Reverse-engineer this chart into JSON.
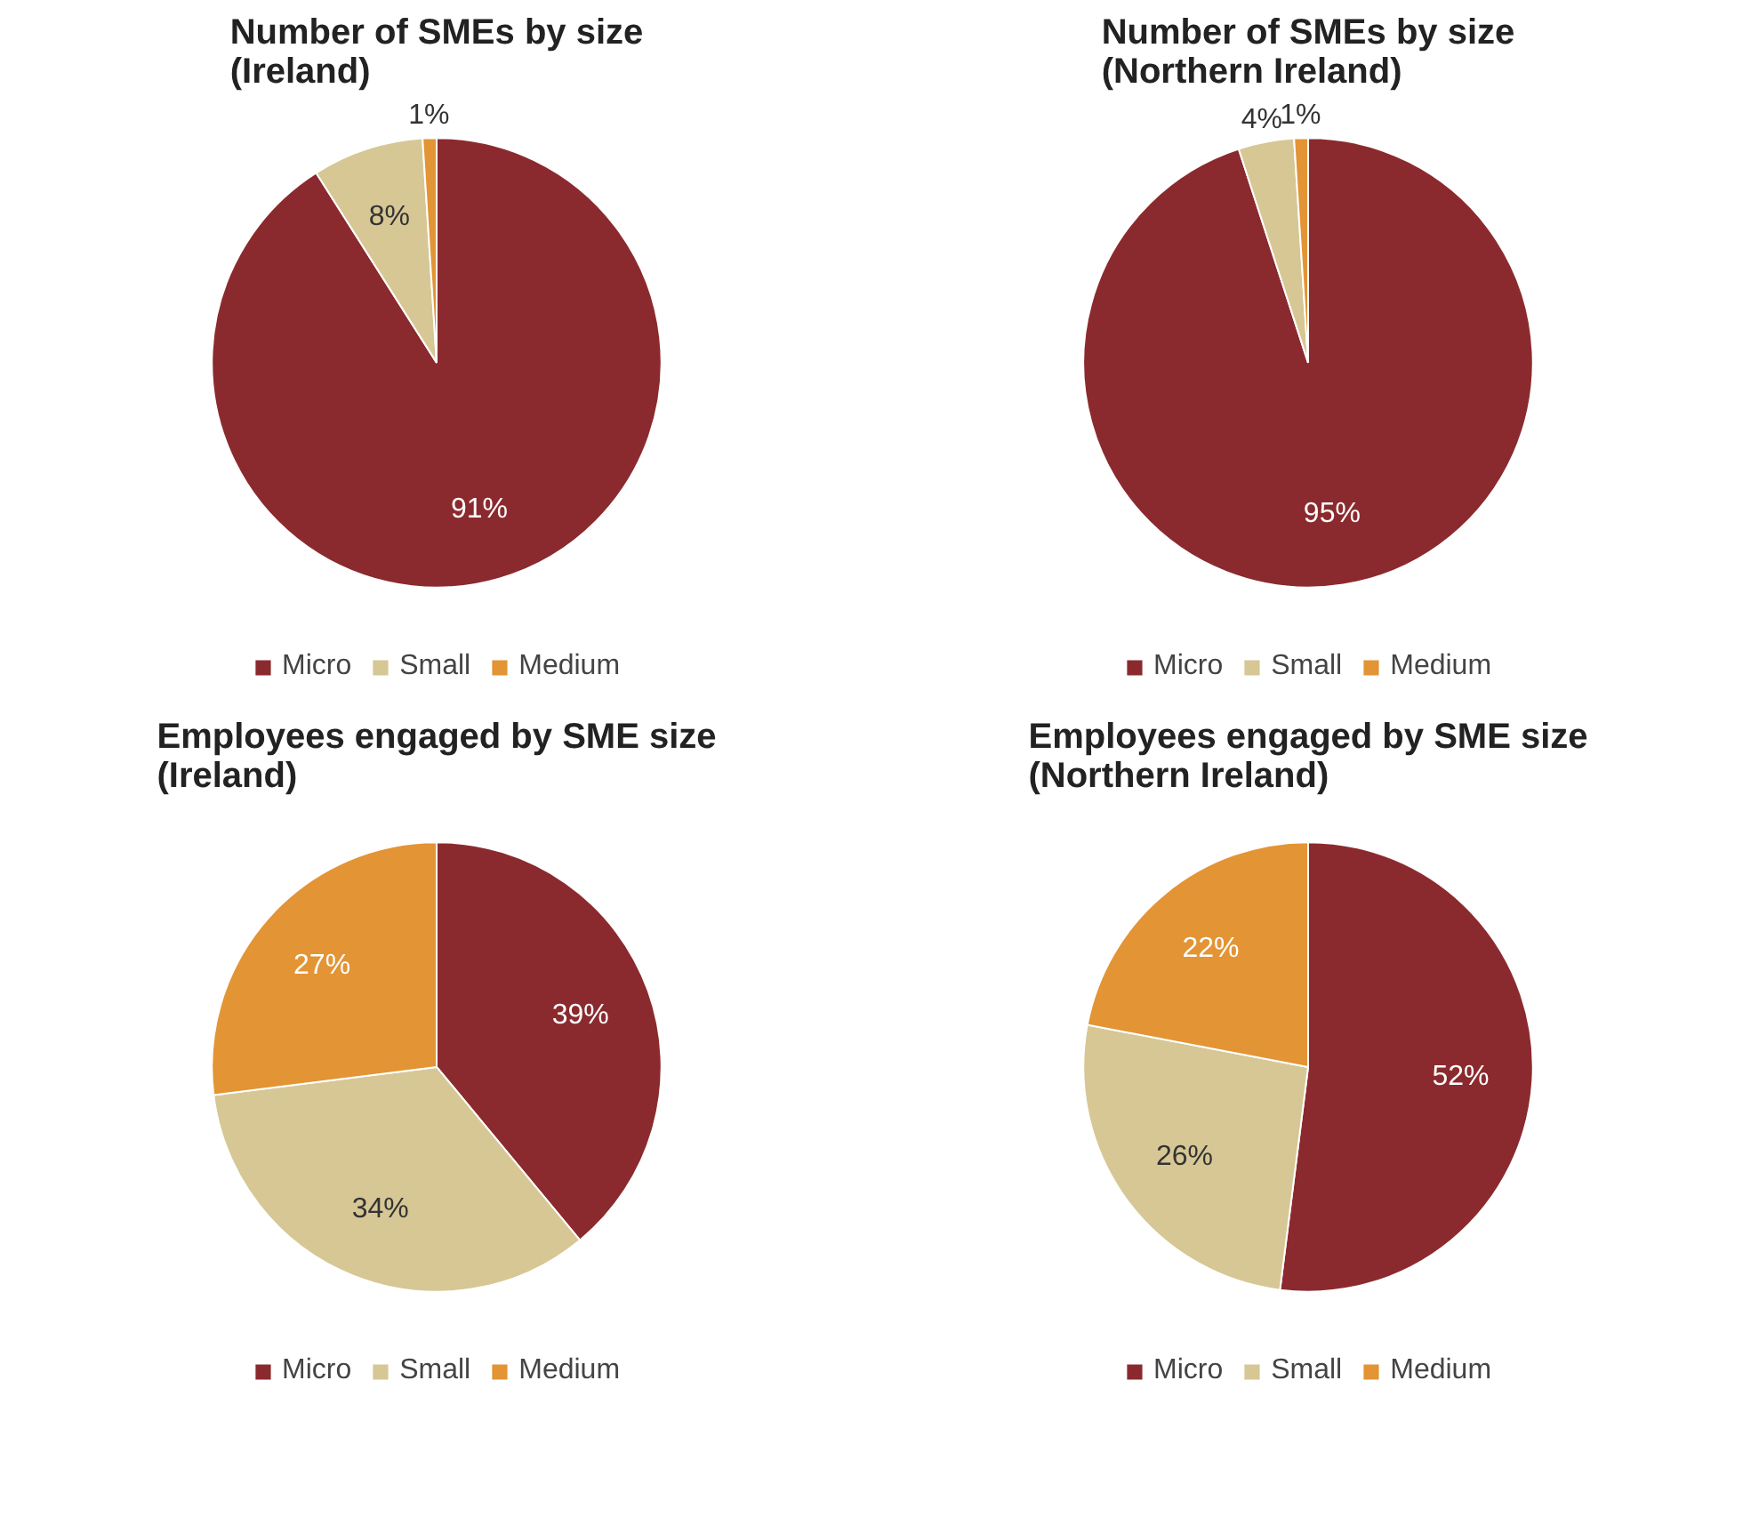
{
  "chart_data": [
    {
      "type": "pie",
      "title": "Number of SMEs by size\n(Ireland)",
      "categories": [
        "Micro",
        "Small",
        "Medium"
      ],
      "values": [
        91,
        8,
        1
      ],
      "value_labels": [
        "91%",
        "8%",
        "1%"
      ],
      "colors": [
        "#8b2a2e",
        "#d6c795",
        "#e39435"
      ],
      "legend": "bottom"
    },
    {
      "type": "pie",
      "title": "Number of SMEs by size\n(Northern Ireland)",
      "categories": [
        "Micro",
        "Small",
        "Medium"
      ],
      "values": [
        95,
        4,
        1
      ],
      "value_labels": [
        "95%",
        "4%",
        "1%"
      ],
      "colors": [
        "#8b2a2e",
        "#d6c795",
        "#e39435"
      ],
      "legend": "bottom"
    },
    {
      "type": "pie",
      "title": "Employees engaged by SME size\n(Ireland)",
      "categories": [
        "Micro",
        "Small",
        "Medium"
      ],
      "values": [
        39,
        34,
        27
      ],
      "value_labels": [
        "39%",
        "34%",
        "27%"
      ],
      "colors": [
        "#8b2a2e",
        "#d6c795",
        "#e39435"
      ],
      "legend": "bottom"
    },
    {
      "type": "pie",
      "title": "Employees engaged by SME size\n(Northern Ireland)",
      "categories": [
        "Micro",
        "Small",
        "Medium"
      ],
      "values": [
        52,
        26,
        22
      ],
      "value_labels": [
        "52%",
        "26%",
        "22%"
      ],
      "colors": [
        "#8b2a2e",
        "#d6c795",
        "#e39435"
      ],
      "legend": "bottom"
    }
  ]
}
